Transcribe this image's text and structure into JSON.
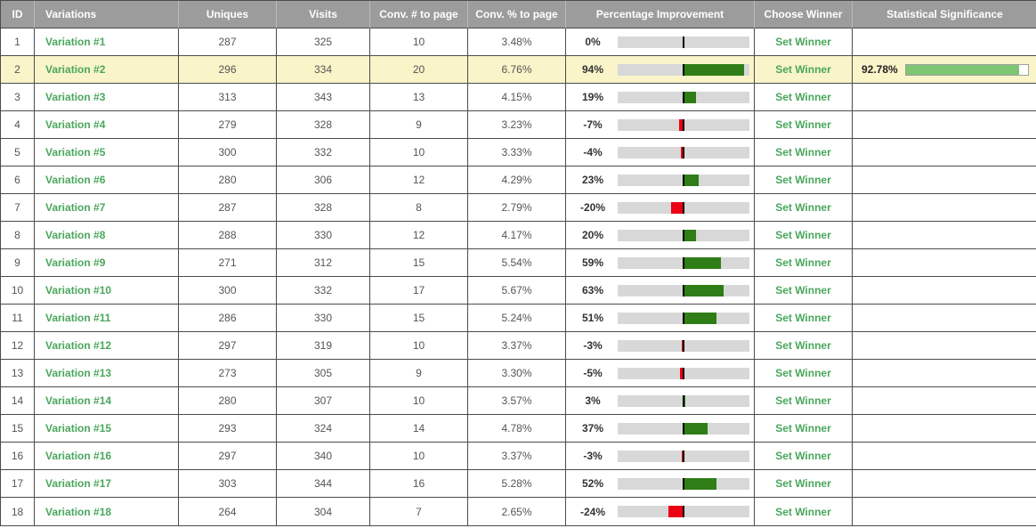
{
  "colors": {
    "header_bg": "#9c9c9c",
    "header_text": "#ffffff",
    "border": "#4b4b4b",
    "link_green": "#4aa75c",
    "positive_bar": "#2f7d17",
    "negative_bar": "#ec0013",
    "bar_track": "#d8d8d8",
    "zero_tick": "#000000",
    "highlight_row": "#faf4c9",
    "significance_fill": "#7cc674",
    "number_text": "#555555"
  },
  "table": {
    "headers": [
      "ID",
      "Variations",
      "Uniques",
      "Visits",
      "Conv. # to page",
      "Conv. % to page",
      "Percentage Improvement",
      "Choose Winner",
      "Statistical Significance"
    ],
    "set_winner_label": "Set Winner",
    "improvement_axis": {
      "min_pct": -100,
      "max_pct": 100,
      "zero_marker": true
    },
    "rows": [
      {
        "id": "1",
        "variation": "Variation #1",
        "uniques": "287",
        "visits": "325",
        "conversions": "10",
        "conversion_rate": "3.48%",
        "improvement": {
          "label": "0%",
          "value": 0
        },
        "significance": null,
        "highlighted": false
      },
      {
        "id": "2",
        "variation": "Variation #2",
        "uniques": "296",
        "visits": "334",
        "conversions": "20",
        "conversion_rate": "6.76%",
        "improvement": {
          "label": "94%",
          "value": 94
        },
        "significance": {
          "label": "92.78%",
          "value": 92.78
        },
        "highlighted": true
      },
      {
        "id": "3",
        "variation": "Variation #3",
        "uniques": "313",
        "visits": "343",
        "conversions": "13",
        "conversion_rate": "4.15%",
        "improvement": {
          "label": "19%",
          "value": 19
        },
        "significance": null,
        "highlighted": false
      },
      {
        "id": "4",
        "variation": "Variation #4",
        "uniques": "279",
        "visits": "328",
        "conversions": "9",
        "conversion_rate": "3.23%",
        "improvement": {
          "label": "-7%",
          "value": -7
        },
        "significance": null,
        "highlighted": false
      },
      {
        "id": "5",
        "variation": "Variation #5",
        "uniques": "300",
        "visits": "332",
        "conversions": "10",
        "conversion_rate": "3.33%",
        "improvement": {
          "label": "-4%",
          "value": -4
        },
        "significance": null,
        "highlighted": false
      },
      {
        "id": "6",
        "variation": "Variation #6",
        "uniques": "280",
        "visits": "306",
        "conversions": "12",
        "conversion_rate": "4.29%",
        "improvement": {
          "label": "23%",
          "value": 23
        },
        "significance": null,
        "highlighted": false
      },
      {
        "id": "7",
        "variation": "Variation #7",
        "uniques": "287",
        "visits": "328",
        "conversions": "8",
        "conversion_rate": "2.79%",
        "improvement": {
          "label": "-20%",
          "value": -20
        },
        "significance": null,
        "highlighted": false
      },
      {
        "id": "8",
        "variation": "Variation #8",
        "uniques": "288",
        "visits": "330",
        "conversions": "12",
        "conversion_rate": "4.17%",
        "improvement": {
          "label": "20%",
          "value": 20
        },
        "significance": null,
        "highlighted": false
      },
      {
        "id": "9",
        "variation": "Variation #9",
        "uniques": "271",
        "visits": "312",
        "conversions": "15",
        "conversion_rate": "5.54%",
        "improvement": {
          "label": "59%",
          "value": 59
        },
        "significance": null,
        "highlighted": false
      },
      {
        "id": "10",
        "variation": "Variation #10",
        "uniques": "300",
        "visits": "332",
        "conversions": "17",
        "conversion_rate": "5.67%",
        "improvement": {
          "label": "63%",
          "value": 63
        },
        "significance": null,
        "highlighted": false
      },
      {
        "id": "11",
        "variation": "Variation #11",
        "uniques": "286",
        "visits": "330",
        "conversions": "15",
        "conversion_rate": "5.24%",
        "improvement": {
          "label": "51%",
          "value": 51
        },
        "significance": null,
        "highlighted": false
      },
      {
        "id": "12",
        "variation": "Variation #12",
        "uniques": "297",
        "visits": "319",
        "conversions": "10",
        "conversion_rate": "3.37%",
        "improvement": {
          "label": "-3%",
          "value": -3
        },
        "significance": null,
        "highlighted": false
      },
      {
        "id": "13",
        "variation": "Variation #13",
        "uniques": "273",
        "visits": "305",
        "conversions": "9",
        "conversion_rate": "3.30%",
        "improvement": {
          "label": "-5%",
          "value": -5
        },
        "significance": null,
        "highlighted": false
      },
      {
        "id": "14",
        "variation": "Variation #14",
        "uniques": "280",
        "visits": "307",
        "conversions": "10",
        "conversion_rate": "3.57%",
        "improvement": {
          "label": "3%",
          "value": 3
        },
        "significance": null,
        "highlighted": false
      },
      {
        "id": "15",
        "variation": "Variation #15",
        "uniques": "293",
        "visits": "324",
        "conversions": "14",
        "conversion_rate": "4.78%",
        "improvement": {
          "label": "37%",
          "value": 37
        },
        "significance": null,
        "highlighted": false
      },
      {
        "id": "16",
        "variation": "Variation #16",
        "uniques": "297",
        "visits": "340",
        "conversions": "10",
        "conversion_rate": "3.37%",
        "improvement": {
          "label": "-3%",
          "value": -3
        },
        "significance": null,
        "highlighted": false
      },
      {
        "id": "17",
        "variation": "Variation #17",
        "uniques": "303",
        "visits": "344",
        "conversions": "16",
        "conversion_rate": "5.28%",
        "improvement": {
          "label": "52%",
          "value": 52
        },
        "significance": null,
        "highlighted": false
      },
      {
        "id": "18",
        "variation": "Variation #18",
        "uniques": "264",
        "visits": "304",
        "conversions": "7",
        "conversion_rate": "2.65%",
        "improvement": {
          "label": "-24%",
          "value": -24
        },
        "significance": null,
        "highlighted": false
      }
    ]
  }
}
